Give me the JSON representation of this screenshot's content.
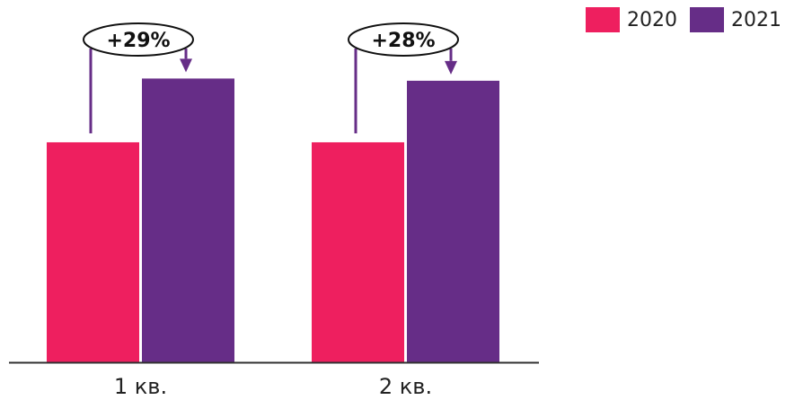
{
  "chart_data": {
    "type": "bar",
    "title": "",
    "xlabel": "",
    "ylabel": "",
    "categories": [
      "1 кв.",
      "2 кв."
    ],
    "series": [
      {
        "name": "2020",
        "color": "#ee1f5f",
        "values": [
          100,
          100
        ]
      },
      {
        "name": "2021",
        "color": "#662d87",
        "values": [
          129,
          128
        ]
      }
    ],
    "annotations": [
      "+29%",
      "+28%"
    ],
    "ylim": [
      0,
      150
    ],
    "grid": false,
    "legend_position": "top-right",
    "colors": {
      "arrow": "#662d87",
      "axis": "#333333"
    }
  }
}
